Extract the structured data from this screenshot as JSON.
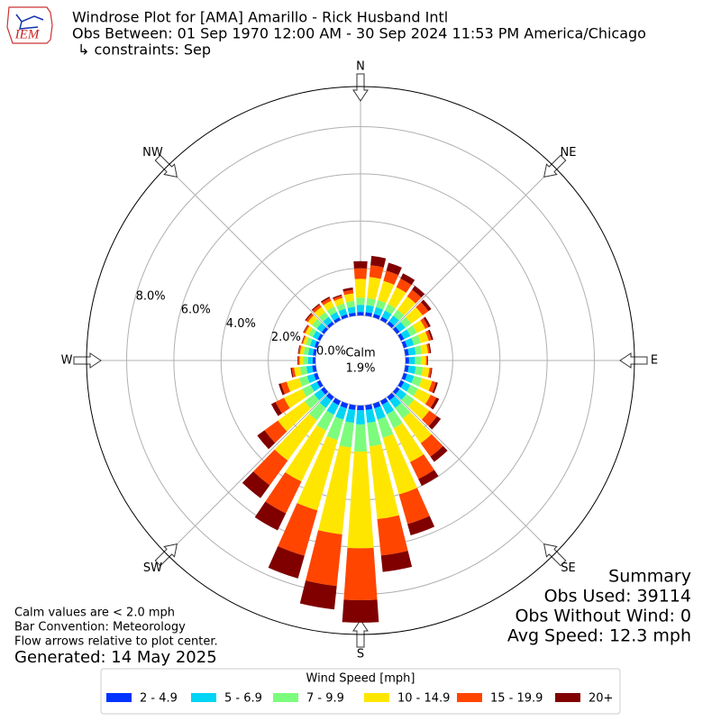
{
  "chart_data": {
    "type": "windrose",
    "title": "Windrose Plot for [AMA] Amarillo - Rick Husband Intl",
    "subtitle": "Obs Between: 01 Sep 1970 12:00 AM - 30 Sep 2024 11:53 PM America/Chicago",
    "constraints": "↳ constraints: Sep",
    "logo": "IEM",
    "x": [
      0,
      10,
      20,
      30,
      40,
      50,
      60,
      70,
      80,
      90,
      100,
      110,
      120,
      130,
      140,
      150,
      160,
      170,
      180,
      190,
      200,
      210,
      220,
      230,
      240,
      250,
      260,
      270,
      280,
      290,
      300,
      310,
      320,
      330,
      340,
      350
    ],
    "xticks": [
      {
        "value": 0,
        "label": "N"
      },
      {
        "value": 45,
        "label": "NE"
      },
      {
        "value": 90,
        "label": "E"
      },
      {
        "value": 135,
        "label": "SE"
      },
      {
        "value": 180,
        "label": "S"
      },
      {
        "value": 225,
        "label": "SW"
      },
      {
        "value": 270,
        "label": "W"
      },
      {
        "value": 315,
        "label": "NW"
      }
    ],
    "ylim": [
      0,
      9.7
    ],
    "yticks": [
      {
        "value": 0,
        "label": "0.0%"
      },
      {
        "value": 2,
        "label": "2.0%"
      },
      {
        "value": 4,
        "label": "4.0%"
      },
      {
        "value": 6,
        "label": "6.0%"
      },
      {
        "value": 8,
        "label": "8.0%"
      }
    ],
    "grid": true,
    "legend_title": "Wind Speed [mph]",
    "series": [
      {
        "name": "2 - 4.9",
        "color": "#0033ff",
        "values": [
          0.15,
          0.15,
          0.15,
          0.15,
          0.15,
          0.15,
          0.15,
          0.15,
          0.15,
          0.15,
          0.15,
          0.15,
          0.15,
          0.15,
          0.18,
          0.18,
          0.2,
          0.2,
          0.2,
          0.2,
          0.2,
          0.2,
          0.18,
          0.17,
          0.15,
          0.15,
          0.15,
          0.12,
          0.12,
          0.12,
          0.12,
          0.13,
          0.13,
          0.13,
          0.13,
          0.13
        ]
      },
      {
        "name": "5 - 6.9",
        "color": "#00d5f5",
        "values": [
          0.3,
          0.3,
          0.3,
          0.3,
          0.3,
          0.3,
          0.3,
          0.3,
          0.3,
          0.25,
          0.3,
          0.3,
          0.3,
          0.35,
          0.4,
          0.45,
          0.5,
          0.55,
          0.6,
          0.55,
          0.5,
          0.45,
          0.4,
          0.35,
          0.3,
          0.3,
          0.25,
          0.2,
          0.2,
          0.2,
          0.22,
          0.25,
          0.25,
          0.25,
          0.25,
          0.25
        ]
      },
      {
        "name": "7 - 9.9",
        "color": "#7cfc7c",
        "values": [
          0.3,
          0.3,
          0.3,
          0.3,
          0.3,
          0.3,
          0.3,
          0.3,
          0.25,
          0.25,
          0.3,
          0.35,
          0.35,
          0.4,
          0.55,
          0.65,
          0.8,
          1.0,
          1.15,
          1.05,
          0.9,
          0.75,
          0.65,
          0.5,
          0.4,
          0.35,
          0.27,
          0.2,
          0.2,
          0.18,
          0.2,
          0.25,
          0.25,
          0.25,
          0.22,
          0.25
        ]
      },
      {
        "name": "10 - 14.9",
        "color": "#ffe600",
        "values": [
          0.8,
          0.9,
          0.85,
          0.8,
          0.7,
          0.6,
          0.4,
          0.35,
          0.27,
          0.22,
          0.28,
          0.45,
          0.6,
          0.8,
          1.3,
          1.6,
          2.5,
          3.1,
          4.1,
          3.7,
          3.1,
          2.4,
          2.1,
          1.4,
          0.85,
          0.55,
          0.25,
          0.15,
          0.15,
          0.13,
          0.16,
          0.22,
          0.27,
          0.28,
          0.25,
          0.32
        ]
      },
      {
        "name": "15 - 19.9",
        "color": "#ff4500",
        "values": [
          0.45,
          0.5,
          0.45,
          0.4,
          0.35,
          0.3,
          0.15,
          0.12,
          0.08,
          0.05,
          0.08,
          0.17,
          0.27,
          0.4,
          0.7,
          0.8,
          1.3,
          1.55,
          2.2,
          2.2,
          2.0,
          1.5,
          1.3,
          0.7,
          0.4,
          0.25,
          0.1,
          0.06,
          0.06,
          0.05,
          0.07,
          0.1,
          0.12,
          0.13,
          0.1,
          0.15
        ]
      },
      {
        "name": "20+",
        "color": "#800000",
        "values": [
          0.3,
          0.4,
          0.35,
          0.25,
          0.2,
          0.15,
          0.1,
          0.08,
          0.05,
          0.03,
          0.04,
          0.08,
          0.13,
          0.2,
          0.27,
          0.32,
          0.5,
          0.7,
          0.95,
          1.0,
          1.0,
          0.8,
          0.67,
          0.38,
          0.2,
          0.1,
          0.05,
          0.03,
          0.03,
          0.02,
          0.03,
          0.05,
          0.05,
          0.06,
          0.05,
          0.1
        ]
      }
    ],
    "calm": {
      "label": "Calm",
      "value": 1.9,
      "value_label": "1.9%"
    },
    "notes": [
      "Calm values are < 2.0 mph",
      "Bar Convention: Meteorology",
      "Flow arrows relative to plot center."
    ],
    "generated": "Generated: 14 May 2025",
    "summary": {
      "title": "Summary",
      "lines": [
        "Obs Used: 39114",
        "Obs Without Wind: 0",
        "Avg Speed: 12.3 mph"
      ]
    }
  }
}
